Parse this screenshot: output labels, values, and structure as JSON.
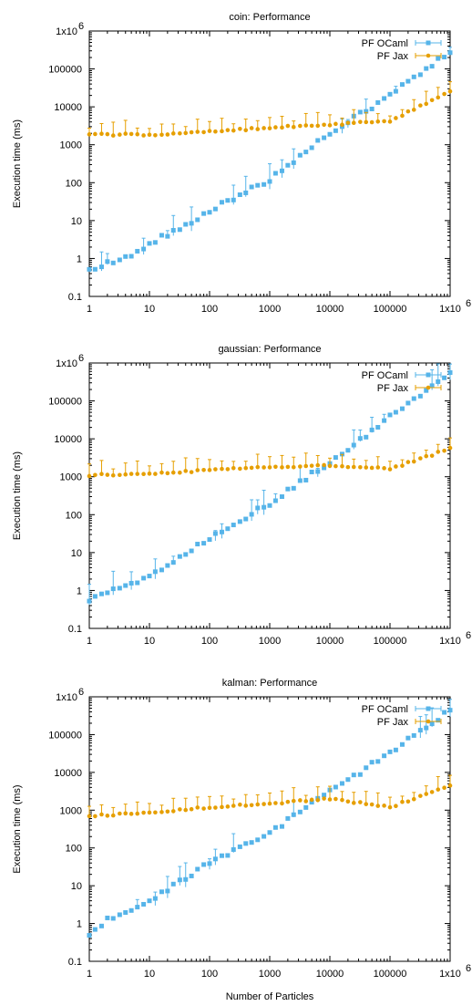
{
  "x_label": "Number of Particles",
  "y_label": "Execution time (ms)",
  "x_ticks": [
    "1",
    "10",
    "100",
    "1000",
    "10000",
    "100000",
    "1x10"
  ],
  "y_ticks": [
    "0.1",
    "1",
    "10",
    "100",
    "1000",
    "10000",
    "100000",
    "1x10"
  ],
  "top_exponent": "6",
  "colors": {
    "ocaml": "#56b4e9",
    "jax": "#e69f00"
  },
  "chart_data": [
    {
      "type": "scatter",
      "title": "coin: Performance",
      "xlabel": "",
      "ylabel": "Execution time (ms)",
      "xscale": "log",
      "yscale": "log",
      "xlim": [
        1,
        1000000
      ],
      "ylim": [
        0.1,
        1000000
      ],
      "legend": "top-right",
      "series": [
        {
          "name": "PF OCaml",
          "marker": "square",
          "error_bars": "vertical",
          "anchors_x": [
            1,
            2,
            5,
            10,
            50,
            100,
            1000,
            10000,
            20000,
            100000,
            1000000
          ],
          "anchors_y": [
            0.5,
            0.75,
            1.3,
            2.5,
            9,
            18,
            120,
            2000,
            4000,
            20000,
            300000
          ]
        },
        {
          "name": "PF Jax",
          "marker": "circle",
          "error_bars": "vertical-up",
          "anchors_x": [
            1,
            10,
            100,
            1000,
            10000,
            100000,
            1000000
          ],
          "anchors_y": [
            1850,
            1850,
            2200,
            2800,
            3400,
            4200,
            26000
          ]
        }
      ]
    },
    {
      "type": "scatter",
      "title": "gaussian: Performance",
      "xlabel": "",
      "ylabel": "Execution time (ms)",
      "xscale": "log",
      "yscale": "log",
      "xlim": [
        1,
        1000000
      ],
      "ylim": [
        0.1,
        1000000
      ],
      "legend": "top-right",
      "series": [
        {
          "name": "PF OCaml",
          "marker": "square",
          "error_bars": "vertical",
          "anchors_x": [
            1,
            2,
            5,
            10,
            50,
            100,
            1000,
            10000,
            20000,
            100000,
            1000000
          ],
          "anchors_y": [
            0.6,
            0.85,
            1.5,
            2.2,
            12,
            25,
            200,
            2500,
            5000,
            40000,
            500000
          ]
        },
        {
          "name": "PF Jax",
          "marker": "circle",
          "error_bars": "vertical-up",
          "anchors_x": [
            1,
            10,
            100,
            1000,
            10000,
            100000,
            1000000
          ],
          "anchors_y": [
            1100,
            1200,
            1500,
            1800,
            2000,
            1600,
            5500
          ]
        }
      ]
    },
    {
      "type": "scatter",
      "title": "kalman: Performance",
      "xlabel": "Number of Particles",
      "ylabel": "Execution time (ms)",
      "xscale": "log",
      "yscale": "log",
      "xlim": [
        1,
        1000000
      ],
      "ylim": [
        0.1,
        1000000
      ],
      "legend": "top-right",
      "series": [
        {
          "name": "PF OCaml",
          "marker": "square",
          "error_bars": "vertical",
          "anchors_x": [
            1,
            2,
            5,
            10,
            50,
            100,
            1000,
            10000,
            20000,
            100000,
            1000000
          ],
          "anchors_y": [
            0.5,
            1.3,
            2.0,
            4.0,
            20,
            40,
            250,
            3000,
            6000,
            35000,
            450000
          ]
        },
        {
          "name": "PF Jax",
          "marker": "circle",
          "error_bars": "vertical-up",
          "anchors_x": [
            1,
            10,
            100,
            1000,
            10000,
            100000,
            1000000
          ],
          "anchors_y": [
            700,
            850,
            1200,
            1500,
            2000,
            1200,
            4500
          ]
        }
      ]
    }
  ]
}
